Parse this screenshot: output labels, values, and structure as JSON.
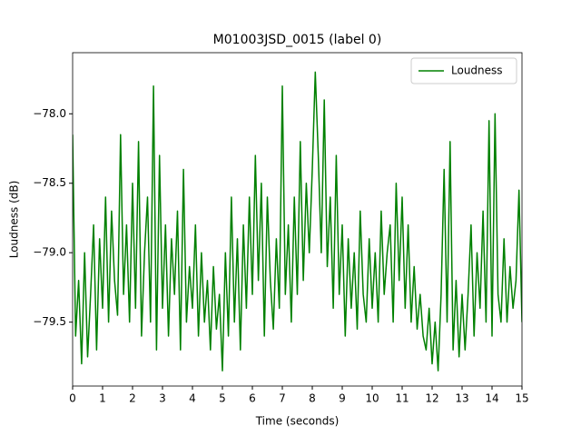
{
  "chart_data": {
    "type": "line",
    "title": "M01003JSD_0015 (label 0)",
    "x_label": "Time (seconds)",
    "y_label": "Loudness (dB)",
    "xlim": [
      0,
      15
    ],
    "ylim": [
      -79.96,
      -77.56
    ],
    "xticks": [
      0,
      1,
      2,
      3,
      4,
      5,
      6,
      7,
      8,
      9,
      10,
      11,
      12,
      13,
      14,
      15
    ],
    "yticks": [
      {
        "value": -79.5,
        "label": "−79.5"
      },
      {
        "value": -79,
        "label": "−79.0"
      },
      {
        "value": -78.5,
        "label": "−78.5"
      },
      {
        "value": -78,
        "label": "−78.0"
      }
    ],
    "legend": "upper right",
    "grid": false,
    "x": [
      0,
      0.1,
      0.2,
      0.3,
      0.4,
      0.5,
      0.6,
      0.7,
      0.8,
      0.9,
      1,
      1.1,
      1.2,
      1.3,
      1.4,
      1.5,
      1.6,
      1.7,
      1.8,
      1.9,
      2,
      2.1,
      2.2,
      2.3,
      2.4,
      2.5,
      2.6,
      2.7,
      2.8,
      2.9,
      3,
      3.1,
      3.2,
      3.3,
      3.4,
      3.5,
      3.6,
      3.7,
      3.8,
      3.9,
      4,
      4.1,
      4.2,
      4.3,
      4.4,
      4.5,
      4.6,
      4.7,
      4.8,
      4.9,
      5,
      5.1,
      5.2,
      5.3,
      5.4,
      5.5,
      5.6,
      5.7,
      5.8,
      5.9,
      6,
      6.1,
      6.2,
      6.3,
      6.4,
      6.5,
      6.6,
      6.7,
      6.8,
      6.9,
      7,
      7.1,
      7.2,
      7.3,
      7.4,
      7.5,
      7.6,
      7.7,
      7.8,
      7.9,
      8,
      8.1,
      8.2,
      8.3,
      8.4,
      8.5,
      8.6,
      8.7,
      8.8,
      8.9,
      9,
      9.1,
      9.2,
      9.3,
      9.4,
      9.5,
      9.6,
      9.7,
      9.8,
      9.9,
      10,
      10.1,
      10.2,
      10.3,
      10.4,
      10.5,
      10.6,
      10.7,
      10.8,
      10.9,
      11,
      11.1,
      11.2,
      11.3,
      11.4,
      11.5,
      11.6,
      11.7,
      11.8,
      11.9,
      12,
      12.1,
      12.2,
      12.3,
      12.4,
      12.5,
      12.6,
      12.7,
      12.8,
      12.9,
      13,
      13.1,
      13.2,
      13.3,
      13.4,
      13.5,
      13.6,
      13.7,
      13.8,
      13.9,
      14,
      14.1,
      14.2,
      14.3,
      14.4,
      14.5,
      14.6,
      14.7,
      14.8,
      14.9,
      15
    ],
    "series": [
      {
        "name": "Loudness",
        "color": "#008000",
        "values": [
          -78.15,
          -79.6,
          -79.2,
          -79.8,
          -79.0,
          -79.75,
          -79.3,
          -78.8,
          -79.7,
          -78.9,
          -79.4,
          -78.6,
          -79.5,
          -78.7,
          -79.2,
          -79.45,
          -78.15,
          -79.3,
          -78.8,
          -79.5,
          -78.5,
          -79.4,
          -78.2,
          -79.6,
          -79.0,
          -78.6,
          -79.5,
          -77.8,
          -79.7,
          -78.3,
          -79.4,
          -78.8,
          -79.6,
          -78.9,
          -79.3,
          -78.7,
          -79.7,
          -78.4,
          -79.5,
          -79.1,
          -79.4,
          -78.8,
          -79.6,
          -79.0,
          -79.5,
          -79.2,
          -79.7,
          -79.1,
          -79.55,
          -79.3,
          -79.85,
          -79.0,
          -79.6,
          -78.6,
          -79.5,
          -78.9,
          -79.7,
          -78.8,
          -79.4,
          -78.6,
          -79.3,
          -78.3,
          -79.2,
          -78.5,
          -79.6,
          -78.6,
          -79.2,
          -79.55,
          -78.9,
          -79.4,
          -77.8,
          -79.3,
          -78.8,
          -79.5,
          -78.6,
          -79.3,
          -78.2,
          -79.2,
          -78.5,
          -79.0,
          -78.4,
          -77.7,
          -78.3,
          -79.0,
          -77.9,
          -79.1,
          -78.6,
          -79.4,
          -78.3,
          -79.3,
          -78.8,
          -79.6,
          -78.9,
          -79.4,
          -79.0,
          -79.55,
          -78.7,
          -79.3,
          -79.5,
          -78.9,
          -79.4,
          -79.0,
          -79.5,
          -78.7,
          -79.3,
          -79.0,
          -78.8,
          -79.5,
          -78.5,
          -79.2,
          -78.6,
          -79.4,
          -78.8,
          -79.5,
          -79.1,
          -79.55,
          -79.3,
          -79.6,
          -79.7,
          -79.4,
          -79.8,
          -79.5,
          -79.85,
          -79.3,
          -78.4,
          -79.5,
          -78.2,
          -79.7,
          -79.2,
          -79.75,
          -79.3,
          -79.7,
          -79.3,
          -78.8,
          -79.6,
          -79.0,
          -79.4,
          -78.7,
          -79.5,
          -78.05,
          -79.6,
          -78.0,
          -79.3,
          -79.5,
          -78.9,
          -79.5,
          -79.1,
          -79.4,
          -79.2,
          -78.55,
          -79.5
        ]
      }
    ]
  }
}
